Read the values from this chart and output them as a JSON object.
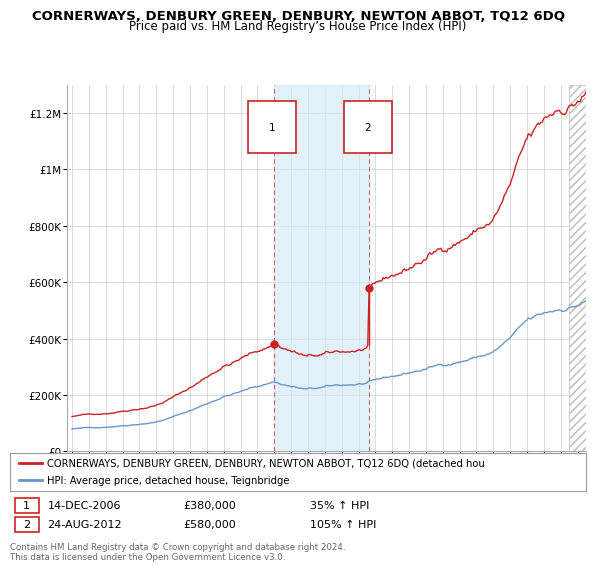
{
  "title": "CORNERWAYS, DENBURY GREEN, DENBURY, NEWTON ABBOT, TQ12 6DQ",
  "subtitle": "Price paid vs. HM Land Registry’s House Price Index (HPI)",
  "title_fontsize": 9.5,
  "subtitle_fontsize": 8.5,
  "ylim": [
    0,
    1300000
  ],
  "yticks": [
    0,
    200000,
    400000,
    600000,
    800000,
    1000000,
    1200000
  ],
  "ytick_labels": [
    "£0",
    "£200K",
    "£400K",
    "£600K",
    "£800K",
    "£1M",
    "£1.2M"
  ],
  "hpi_color": "#6699cc",
  "price_color": "#cc2222",
  "sale1_date": 2006.96,
  "sale1_price": 380000,
  "sale2_date": 2012.65,
  "sale2_price": 580000,
  "shade_start": 2006.96,
  "shade_end": 2012.65,
  "hatch_start": 2024.5,
  "legend_price_label": "CORNERWAYS, DENBURY GREEN, DENBURY, NEWTON ABBOT, TQ12 6DQ (detached hou",
  "legend_hpi_label": "HPI: Average price, detached house, Teignbridge",
  "footnote": "Contains HM Land Registry data © Crown copyright and database right 2024.\nThis data is licensed under the Open Government Licence v3.0.",
  "background_color": "#ffffff",
  "grid_color": "#cccccc",
  "xmin": 1995,
  "xmax": 2025.5
}
